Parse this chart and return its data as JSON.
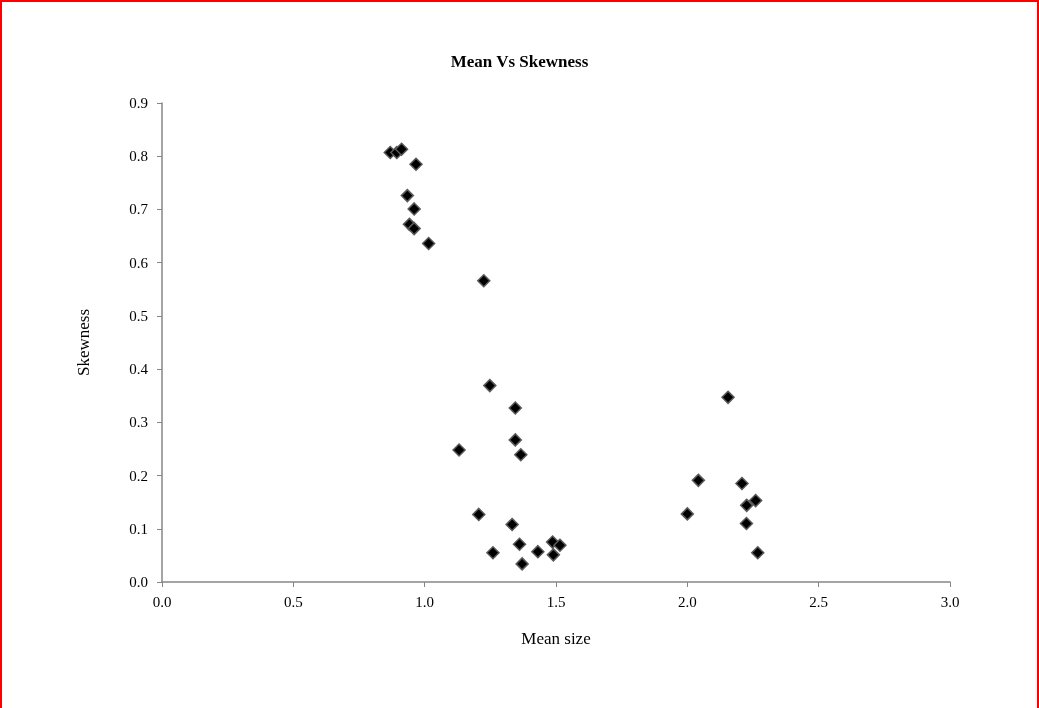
{
  "chart_data": {
    "type": "scatter",
    "title": "Mean Vs Skewness",
    "xlabel": "Mean size",
    "ylabel": "Skewness",
    "x": [
      0.869,
      0.894,
      0.912,
      0.967,
      0.934,
      0.96,
      0.942,
      0.96,
      1.015,
      1.225,
      1.248,
      1.345,
      1.345,
      1.366,
      1.131,
      1.206,
      1.333,
      1.361,
      1.26,
      1.371,
      1.431,
      1.487,
      1.515,
      1.49,
      2.155,
      2.042,
      2.0,
      2.208,
      2.26,
      2.226,
      2.225,
      2.268
    ],
    "values": [
      0.807,
      0.807,
      0.813,
      0.785,
      0.726,
      0.701,
      0.672,
      0.664,
      0.636,
      0.566,
      0.369,
      0.327,
      0.267,
      0.239,
      0.248,
      0.127,
      0.108,
      0.071,
      0.055,
      0.034,
      0.057,
      0.075,
      0.069,
      0.051,
      0.347,
      0.191,
      0.128,
      0.185,
      0.153,
      0.144,
      0.11,
      0.055
    ],
    "color": "#000000",
    "marker": "diamond",
    "grid": false,
    "xlim": [
      0,
      3
    ],
    "xticks": [
      {
        "value": 0,
        "label": "0.0"
      },
      {
        "value": 0.5,
        "label": "0.5"
      },
      {
        "value": 1,
        "label": "1.0"
      },
      {
        "value": 1.5,
        "label": "1.5"
      },
      {
        "value": 2,
        "label": "2.0"
      },
      {
        "value": 2.5,
        "label": "2.5"
      },
      {
        "value": 3,
        "label": "3.0"
      }
    ],
    "ylim": [
      0,
      0.9
    ],
    "yticks": [
      {
        "value": 0,
        "label": "0.0"
      },
      {
        "value": 0.1,
        "label": "0.1"
      },
      {
        "value": 0.2,
        "label": "0.2"
      },
      {
        "value": 0.3,
        "label": "0.3"
      },
      {
        "value": 0.4,
        "label": "0.4"
      },
      {
        "value": 0.5,
        "label": "0.5"
      },
      {
        "value": 0.6,
        "label": "0.6"
      },
      {
        "value": 0.7,
        "label": "0.7"
      },
      {
        "value": 0.8,
        "label": "0.8"
      },
      {
        "value": 0.9,
        "label": "0.9"
      }
    ]
  }
}
